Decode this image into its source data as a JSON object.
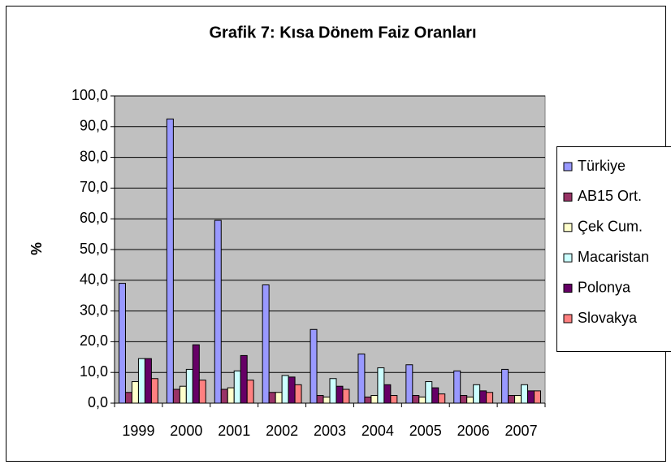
{
  "chart_data": {
    "type": "bar",
    "title": "Grafik 7: Kısa Dönem Faiz Oranları",
    "y_label": "%",
    "categories": [
      "1999",
      "2000",
      "2001",
      "2002",
      "2003",
      "2004",
      "2005",
      "2006",
      "2007"
    ],
    "series": [
      {
        "name": "Türkiye",
        "color": "#9999ff",
        "values": [
          39,
          92.5,
          59.5,
          38.5,
          24,
          16,
          12.5,
          10.5,
          11
        ]
      },
      {
        "name": "AB15 Ort.",
        "color": "#993366",
        "values": [
          3.5,
          4.5,
          4.5,
          3.5,
          2.5,
          2,
          2.5,
          2.5,
          2.5
        ]
      },
      {
        "name": "Çek Cum.",
        "color": "#ffffcc",
        "values": [
          7,
          5.5,
          5,
          3.5,
          2,
          2.5,
          2,
          2,
          2.5
        ]
      },
      {
        "name": "Macaristan",
        "color": "#ccffff",
        "values": [
          14.5,
          11,
          10.5,
          9,
          8,
          11.5,
          7,
          6,
          6
        ]
      },
      {
        "name": "Polonya",
        "color": "#660066",
        "values": [
          14.5,
          19,
          15.5,
          8.5,
          5.5,
          6,
          5,
          4,
          4
        ]
      },
      {
        "name": "Slovakya",
        "color": "#ff8080",
        "values": [
          8,
          7.5,
          7.5,
          6,
          4.5,
          2.5,
          3,
          3.5,
          4
        ]
      }
    ],
    "ylim": [
      0,
      100
    ],
    "yticks": [
      {
        "value": 0,
        "label": "0,0"
      },
      {
        "value": 10,
        "label": "10,0"
      },
      {
        "value": 20,
        "label": "20,0"
      },
      {
        "value": 30,
        "label": "30,0"
      },
      {
        "value": 40,
        "label": "40,0"
      },
      {
        "value": 50,
        "label": "50,0"
      },
      {
        "value": 60,
        "label": "60,0"
      },
      {
        "value": 70,
        "label": "70,0"
      },
      {
        "value": 80,
        "label": "80,0"
      },
      {
        "value": 90,
        "label": "90,0"
      },
      {
        "value": 100,
        "label": "100,0"
      }
    ],
    "grid": true,
    "legend": "right",
    "plot_background": "#c0c0c0"
  }
}
